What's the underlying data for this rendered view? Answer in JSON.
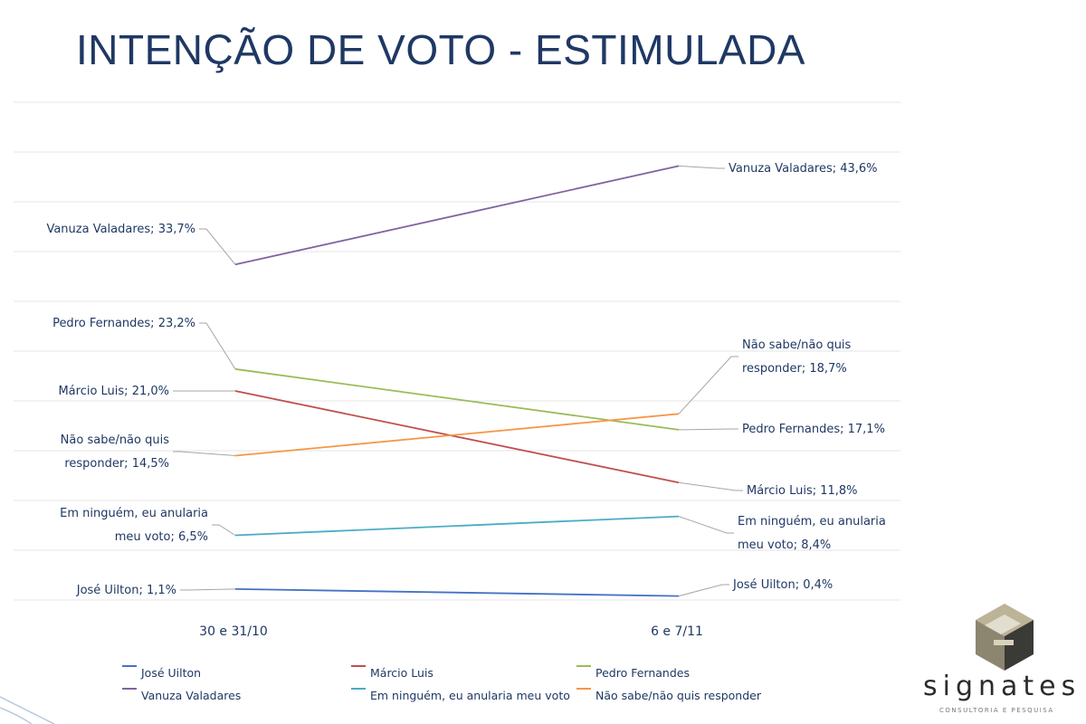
{
  "page": {
    "title": "INTENÇÃO DE VOTO - ESTIMULADA"
  },
  "chart_data": {
    "type": "line",
    "categories": [
      "30 e 31/10",
      "6 e 7/11"
    ],
    "ylim": [
      0,
      50
    ],
    "grid": true,
    "legend_position": "bottom",
    "series": [
      {
        "name": "José Uilton",
        "color": "#4472c4",
        "values": [
          1.1,
          0.4
        ],
        "labels": [
          [
            "José Uilton; 1,1%"
          ],
          [
            "José Uilton; 0,4%"
          ]
        ]
      },
      {
        "name": "Márcio Luis",
        "color": "#c0504d",
        "values": [
          21.0,
          11.8
        ],
        "labels": [
          [
            "Márcio Luis; 21,0%"
          ],
          [
            "Márcio Luis; 11,8%"
          ]
        ]
      },
      {
        "name": "Pedro Fernandes",
        "color": "#9bbb59",
        "values": [
          23.2,
          17.1
        ],
        "labels": [
          [
            "Pedro Fernandes; 23,2%"
          ],
          [
            "Pedro Fernandes; 17,1%"
          ]
        ]
      },
      {
        "name": "Vanuza Valadares",
        "color": "#8064a2",
        "values": [
          33.7,
          43.6
        ],
        "labels": [
          [
            "Vanuza Valadares; 33,7%"
          ],
          [
            "Vanuza Valadares; 43,6%"
          ]
        ]
      },
      {
        "name": "Em ninguém, eu anularia meu voto",
        "color": "#4bacc6",
        "values": [
          6.5,
          8.4
        ],
        "labels": [
          [
            "Em ninguém, eu anularia",
            "meu voto; 6,5%"
          ],
          [
            "Em ninguém, eu anularia",
            "meu voto; 8,4%"
          ]
        ]
      },
      {
        "name": "Não sabe/não quis responder",
        "color": "#f79646",
        "values": [
          14.5,
          18.7
        ],
        "labels": [
          [
            "Não sabe/não quis",
            "responder; 14,5%"
          ],
          [
            "Não sabe/não quis",
            "responder; 18,7%"
          ]
        ]
      }
    ]
  },
  "logo": {
    "name": "signates",
    "tagline": "CONSULTORIA E PESQUISA"
  }
}
